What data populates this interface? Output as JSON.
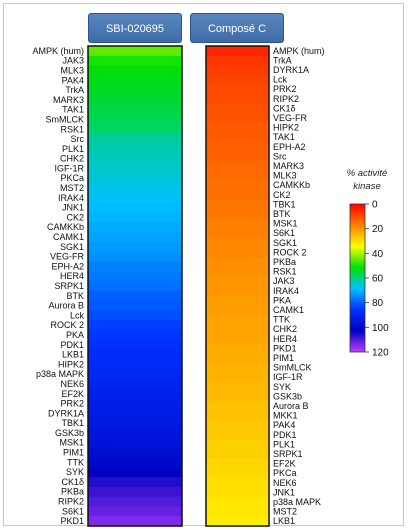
{
  "chart_data": {
    "type": "heatmap",
    "colorbar": {
      "title": [
        "% activité",
        "kinase"
      ],
      "ticks": [
        0,
        20,
        40,
        60,
        80,
        100,
        120
      ],
      "range": [
        0,
        120
      ],
      "colors": [
        "#ff0000",
        "#ff8000",
        "#ffff00",
        "#00e000",
        "#00c0ff",
        "#0030ff",
        "#0000c0",
        "#c040ff"
      ]
    },
    "panels": [
      {
        "title": "SBI-020695",
        "labels": [
          "AMPK (hum)",
          "JAK3",
          "MLK3",
          "PAK4",
          "TrkA",
          "MARK3",
          "TAK1",
          "SmMLCK",
          "RSK1",
          "Src",
          "PLK1",
          "CHK2",
          "IGF-1R",
          "PKCa",
          "MST2",
          "IRAK4",
          "JNK1",
          "CK2",
          "CAMKKb",
          "CAMK1",
          "SGK1",
          "VEG-FR",
          "EPH-A2",
          "HER4",
          "SRPK1",
          "BTK",
          "Aurora B",
          "Lck",
          "ROCK 2",
          "PKA",
          "PDK1",
          "LKB1",
          "HIPK2",
          "p38a MAPK",
          "NEK6",
          "EF2K",
          "PRK2",
          "DYRK1A",
          "TBK1",
          "GSK3b",
          "MSK1",
          "PIM1",
          "TTK",
          "SYK",
          "CK1δ",
          "PKBa",
          "RIPK2",
          "S6K1",
          "PKD1"
        ],
        "values": [
          45,
          50,
          52,
          53,
          54,
          55,
          56,
          57,
          58,
          62,
          63,
          64,
          65,
          66,
          67,
          68,
          69,
          70,
          71,
          72,
          73,
          74,
          76,
          77,
          78,
          80,
          81,
          82,
          84,
          85,
          86,
          87,
          88,
          89,
          90,
          91,
          92,
          93,
          94,
          95,
          96,
          98,
          100,
          103,
          106,
          108,
          110,
          112,
          114
        ]
      },
      {
        "title": "Composé C",
        "labels": [
          "AMPK (hum)",
          "TrkA",
          "DYRK1A",
          "Lck",
          "PRK2",
          "RIPK2",
          "CK1δ",
          "VEG-FR",
          "HIPK2",
          "TAK1",
          "EPH-A2",
          "Src",
          "MARK3",
          "MLK3",
          "CAMKKb",
          "CK2",
          "TBK1",
          "BTK",
          "MSK1",
          "S6K1",
          "SGK1",
          "ROCK 2",
          "PKBa",
          "RSK1",
          "JAK3",
          "IRAK4",
          "PKA",
          "CAMK1",
          "TTK",
          "CHK2",
          "HER4",
          "PKD1",
          "PIM1",
          "SmMLCK",
          "IGF-1R",
          "SYK",
          "GSK3b",
          "Aurora B",
          "MKK1",
          "PAK4",
          "PDK1",
          "PLK1",
          "SRPK1",
          "EF2K",
          "PKCa",
          "NEK6",
          "JNK1",
          "p38a MAPK",
          "MST2",
          "LKB1"
        ],
        "values": [
          5,
          7,
          8,
          9,
          10,
          10,
          11,
          11,
          12,
          12,
          13,
          13,
          14,
          14,
          15,
          15,
          16,
          16,
          17,
          17,
          18,
          18,
          19,
          19,
          20,
          20,
          21,
          21,
          22,
          22,
          22,
          23,
          23,
          24,
          24,
          25,
          25,
          26,
          26,
          27,
          27,
          28,
          28,
          29,
          29,
          30,
          30,
          31,
          31,
          32
        ]
      }
    ]
  }
}
